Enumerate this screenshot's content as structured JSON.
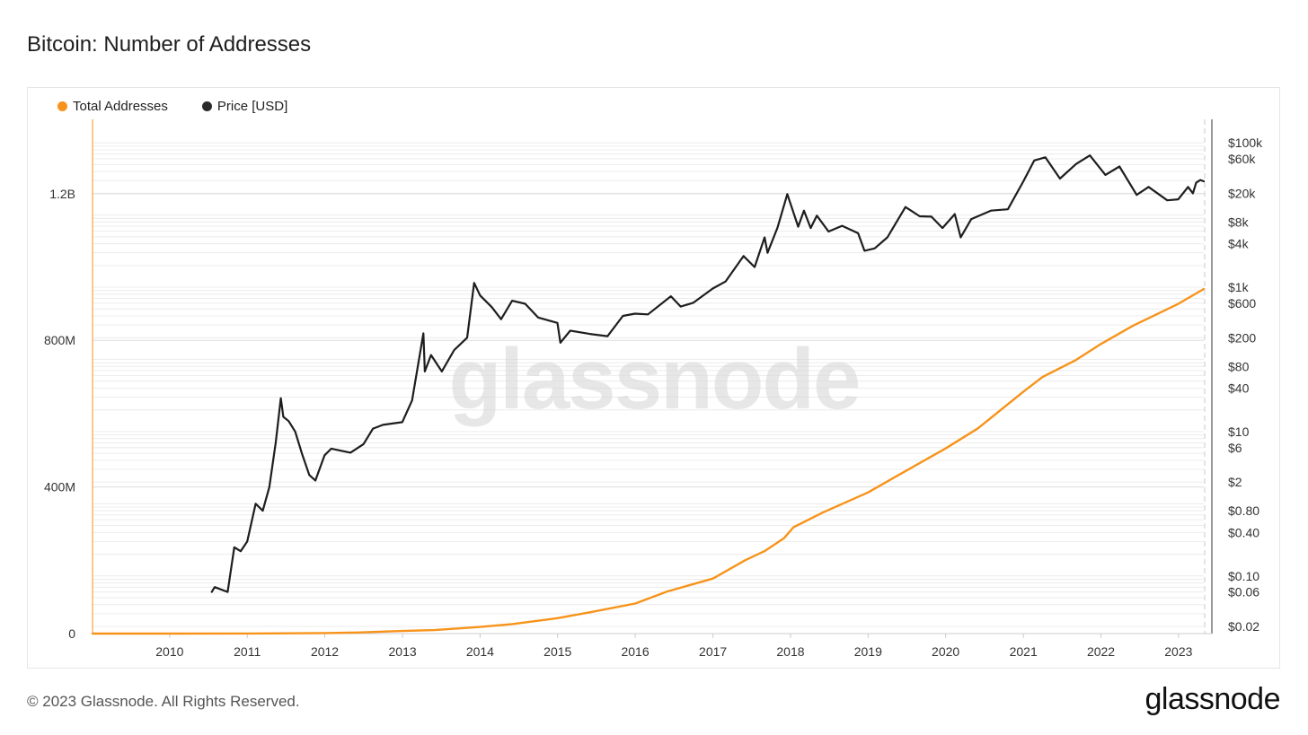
{
  "header": {
    "title": "Bitcoin: Number of Addresses"
  },
  "legend": {
    "total_label": "Total Addresses",
    "price_label": "Price [USD]"
  },
  "watermark": "glassnode",
  "footer": {
    "copyright": "© 2023 Glassnode. All Rights Reserved.",
    "logo": "glassnode"
  },
  "colors": {
    "total": "#f7931a",
    "price": "#1e1e1e",
    "grid": "#ececec",
    "axis_left": "#f7931a"
  },
  "chart_data": {
    "type": "line",
    "title": "Bitcoin: Number of Addresses",
    "x_type": "date",
    "x_ticks": [
      "2010",
      "2011",
      "2012",
      "2013",
      "2014",
      "2015",
      "2016",
      "2017",
      "2018",
      "2019",
      "2020",
      "2021",
      "2022",
      "2023"
    ],
    "x_range": [
      "2009-01-03",
      "2023-04-30"
    ],
    "y_left": {
      "label": "",
      "range": [
        0,
        1400000000
      ],
      "ticks": [
        0,
        400000000,
        800000000,
        1200000000
      ],
      "tick_labels": [
        "0",
        "400M",
        "800M",
        "1.2B"
      ]
    },
    "y_right": {
      "label": "",
      "scale": "log",
      "range": [
        0.02,
        150000
      ],
      "ticks": [
        0.02,
        0.06,
        0.1,
        0.4,
        0.8,
        2,
        6,
        10,
        40,
        80,
        200,
        600,
        1000,
        4000,
        8000,
        20000,
        60000,
        100000
      ],
      "tick_labels": [
        "$0.02",
        "$0.06",
        "$0.10",
        "$0.40",
        "$0.80",
        "$2",
        "$6",
        "$10",
        "$40",
        "$80",
        "$200",
        "$600",
        "$1k",
        "$4k",
        "$8k",
        "$20k",
        "$60k",
        "$100k"
      ]
    },
    "grid": true,
    "legend_position": "top-left",
    "series": [
      {
        "name": "Total Addresses",
        "axis": "left",
        "points": [
          [
            "2009-01-03",
            0
          ],
          [
            "2010-01-01",
            0
          ],
          [
            "2011-01-01",
            200000
          ],
          [
            "2012-01-01",
            1500000
          ],
          [
            "2012-06-01",
            3000000
          ],
          [
            "2013-01-01",
            7000000
          ],
          [
            "2013-06-01",
            9500000
          ],
          [
            "2014-01-01",
            18000000
          ],
          [
            "2014-06-01",
            26000000
          ],
          [
            "2015-01-01",
            42000000
          ],
          [
            "2015-06-01",
            58000000
          ],
          [
            "2016-01-01",
            82000000
          ],
          [
            "2016-06-01",
            115000000
          ],
          [
            "2017-01-01",
            150000000
          ],
          [
            "2017-06-01",
            200000000
          ],
          [
            "2017-09-01",
            225000000
          ],
          [
            "2017-12-01",
            260000000
          ],
          [
            "2018-01-15",
            290000000
          ],
          [
            "2018-06-01",
            330000000
          ],
          [
            "2019-01-01",
            385000000
          ],
          [
            "2019-06-01",
            435000000
          ],
          [
            "2020-01-01",
            505000000
          ],
          [
            "2020-06-01",
            560000000
          ],
          [
            "2021-01-01",
            660000000
          ],
          [
            "2021-04-01",
            700000000
          ],
          [
            "2021-09-01",
            745000000
          ],
          [
            "2022-01-01",
            790000000
          ],
          [
            "2022-06-01",
            840000000
          ],
          [
            "2023-01-01",
            900000000
          ],
          [
            "2023-04-30",
            940000000
          ]
        ]
      },
      {
        "name": "Price [USD]",
        "axis": "right",
        "points": [
          [
            "2010-07-18",
            0.06
          ],
          [
            "2010-08-01",
            0.07
          ],
          [
            "2010-10-01",
            0.06
          ],
          [
            "2010-11-01",
            0.25
          ],
          [
            "2010-12-01",
            0.22
          ],
          [
            "2011-01-01",
            0.3
          ],
          [
            "2011-02-10",
            1.0
          ],
          [
            "2011-03-15",
            0.8
          ],
          [
            "2011-04-15",
            1.7
          ],
          [
            "2011-05-15",
            7.0
          ],
          [
            "2011-06-08",
            29.0
          ],
          [
            "2011-06-20",
            16.0
          ],
          [
            "2011-07-15",
            14.0
          ],
          [
            "2011-08-15",
            10.0
          ],
          [
            "2011-09-15",
            5.0
          ],
          [
            "2011-10-20",
            2.5
          ],
          [
            "2011-11-18",
            2.1
          ],
          [
            "2011-12-31",
            4.7
          ],
          [
            "2012-02-01",
            5.8
          ],
          [
            "2012-05-01",
            5.1
          ],
          [
            "2012-07-01",
            6.7
          ],
          [
            "2012-08-15",
            11.0
          ],
          [
            "2012-10-01",
            12.4
          ],
          [
            "2012-12-31",
            13.5
          ],
          [
            "2013-02-15",
            27.0
          ],
          [
            "2013-04-09",
            230.0
          ],
          [
            "2013-04-16",
            68.0
          ],
          [
            "2013-05-15",
            115.0
          ],
          [
            "2013-07-05",
            68.0
          ],
          [
            "2013-09-01",
            135.0
          ],
          [
            "2013-11-01",
            200.0
          ],
          [
            "2013-12-04",
            1150.0
          ],
          [
            "2014-01-01",
            770.0
          ],
          [
            "2014-02-25",
            530.0
          ],
          [
            "2014-04-10",
            360.0
          ],
          [
            "2014-06-01",
            650.0
          ],
          [
            "2014-08-01",
            590.0
          ],
          [
            "2014-10-01",
            380.0
          ],
          [
            "2014-12-31",
            320.0
          ],
          [
            "2015-01-14",
            170.0
          ],
          [
            "2015-03-01",
            250.0
          ],
          [
            "2015-06-01",
            225.0
          ],
          [
            "2015-08-24",
            210.0
          ],
          [
            "2015-11-04",
            400.0
          ],
          [
            "2015-12-31",
            430.0
          ],
          [
            "2016-03-01",
            420.0
          ],
          [
            "2016-06-17",
            750.0
          ],
          [
            "2016-08-02",
            540.0
          ],
          [
            "2016-10-01",
            610.0
          ],
          [
            "2016-12-31",
            960.0
          ],
          [
            "2017-03-01",
            1200.0
          ],
          [
            "2017-05-25",
            2700.0
          ],
          [
            "2017-07-16",
            1900.0
          ],
          [
            "2017-09-01",
            4900.0
          ],
          [
            "2017-09-15",
            3000.0
          ],
          [
            "2017-11-01",
            6700.0
          ],
          [
            "2017-12-17",
            19500.0
          ],
          [
            "2018-02-06",
            6900.0
          ],
          [
            "2018-03-05",
            11500.0
          ],
          [
            "2018-04-06",
            6600.0
          ],
          [
            "2018-05-05",
            9800.0
          ],
          [
            "2018-06-29",
            5900.0
          ],
          [
            "2018-09-01",
            7100.0
          ],
          [
            "2018-11-15",
            5600.0
          ],
          [
            "2018-12-15",
            3200.0
          ],
          [
            "2019-02-01",
            3450.0
          ],
          [
            "2019-04-02",
            4900.0
          ],
          [
            "2019-06-26",
            12900.0
          ],
          [
            "2019-09-01",
            9600.0
          ],
          [
            "2019-10-26",
            9500.0
          ],
          [
            "2019-12-17",
            6600.0
          ],
          [
            "2020-02-13",
            10300.0
          ],
          [
            "2020-03-12",
            4900.0
          ],
          [
            "2020-05-01",
            8800.0
          ],
          [
            "2020-08-01",
            11500.0
          ],
          [
            "2020-10-20",
            12000.0
          ],
          [
            "2020-12-31",
            29000.0
          ],
          [
            "2021-02-21",
            57000.0
          ],
          [
            "2021-04-14",
            63000.0
          ],
          [
            "2021-06-22",
            32000.0
          ],
          [
            "2021-09-06",
            51000.0
          ],
          [
            "2021-11-10",
            67000.0
          ],
          [
            "2022-01-22",
            36000.0
          ],
          [
            "2022-03-29",
            47000.0
          ],
          [
            "2022-06-18",
            19000.0
          ],
          [
            "2022-08-13",
            24500.0
          ],
          [
            "2022-11-09",
            16000.0
          ],
          [
            "2022-12-31",
            16500.0
          ],
          [
            "2023-02-15",
            24500.0
          ],
          [
            "2023-03-10",
            20000.0
          ],
          [
            "2023-03-25",
            28000.0
          ],
          [
            "2023-04-14",
            30500.0
          ],
          [
            "2023-04-30",
            29300.0
          ]
        ]
      }
    ]
  }
}
